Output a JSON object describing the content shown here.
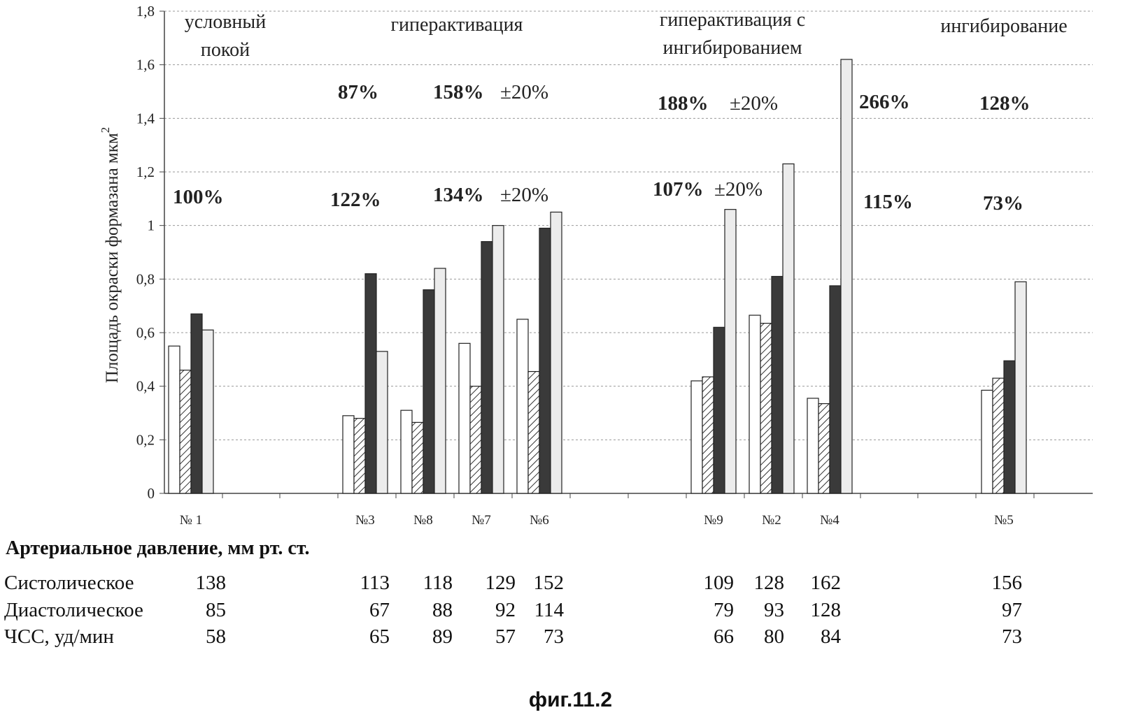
{
  "chart_data": {
    "type": "bar",
    "ylabel": "Площадь окраски формазана мкм",
    "ylabel_sup": "2",
    "ylim": [
      0,
      1.8
    ],
    "yticks": [
      "0",
      "0,2",
      "0,4",
      "0,6",
      "0,8",
      "1",
      "1,2",
      "1,4",
      "1,6",
      "1,8"
    ],
    "grid": true,
    "categories": [
      "№ 1",
      "№3",
      "№8",
      "№7",
      "№6",
      "№9",
      "№2",
      "№4",
      "№5"
    ],
    "series": [
      {
        "values": [
          0.55,
          0.29,
          0.31,
          0.56,
          0.65,
          0.42,
          0.665,
          0.355,
          0.385
        ],
        "fill": "#ffffff"
      },
      {
        "values": [
          0.46,
          0.28,
          0.265,
          0.4,
          0.455,
          0.435,
          0.635,
          0.335,
          0.43
        ],
        "fill": "hatch"
      },
      {
        "values": [
          0.67,
          0.82,
          0.76,
          0.94,
          0.99,
          0.62,
          0.81,
          0.775,
          0.495
        ],
        "fill": "#3a3a3a"
      },
      {
        "values": [
          0.61,
          0.53,
          0.84,
          1.0,
          1.05,
          1.06,
          1.23,
          1.62,
          0.79
        ],
        "fill": "#ececec"
      }
    ],
    "group_labels": [
      {
        "lines": [
          "условный",
          "покой"
        ]
      },
      {
        "lines": [
          "гиперактивация"
        ]
      },
      {
        "lines": [
          "гиперактивация с",
          "ингибированием"
        ]
      },
      {
        "lines": [
          "ингибирование"
        ]
      }
    ],
    "annotations": [
      {
        "text": "100%",
        "bold": true
      },
      {
        "text": "87%",
        "bold": true
      },
      {
        "text": "122%",
        "bold": true
      },
      {
        "text": "158%",
        "bold": true
      },
      {
        "text": "±20%",
        "bold": false
      },
      {
        "text": "134%",
        "bold": true
      },
      {
        "text": "±20%",
        "bold": false
      },
      {
        "text": "188%",
        "bold": true
      },
      {
        "text": "±20%",
        "bold": false
      },
      {
        "text": "107%",
        "bold": true
      },
      {
        "text": "±20%",
        "bold": false
      },
      {
        "text": "266%",
        "bold": true
      },
      {
        "text": "115%",
        "bold": true
      },
      {
        "text": "128%",
        "bold": true
      },
      {
        "text": "73%",
        "bold": true
      }
    ]
  },
  "table": {
    "title": "Артериальное давление, мм рт. ст.",
    "rows": [
      {
        "label": "Систолическое",
        "values": [
          "138",
          "113",
          "118",
          "129",
          "152",
          "109",
          "128",
          "162",
          "156"
        ]
      },
      {
        "label": "Диастолическое",
        "values": [
          "85",
          "67",
          "88",
          "92",
          "114",
          "79",
          "93",
          "128",
          "97"
        ]
      },
      {
        "label": "ЧСС, уд/мин",
        "values": [
          "58",
          "65",
          "89",
          "57",
          "73",
          "66",
          "80",
          "84",
          "73"
        ]
      }
    ]
  },
  "caption": "фиг.11.2"
}
